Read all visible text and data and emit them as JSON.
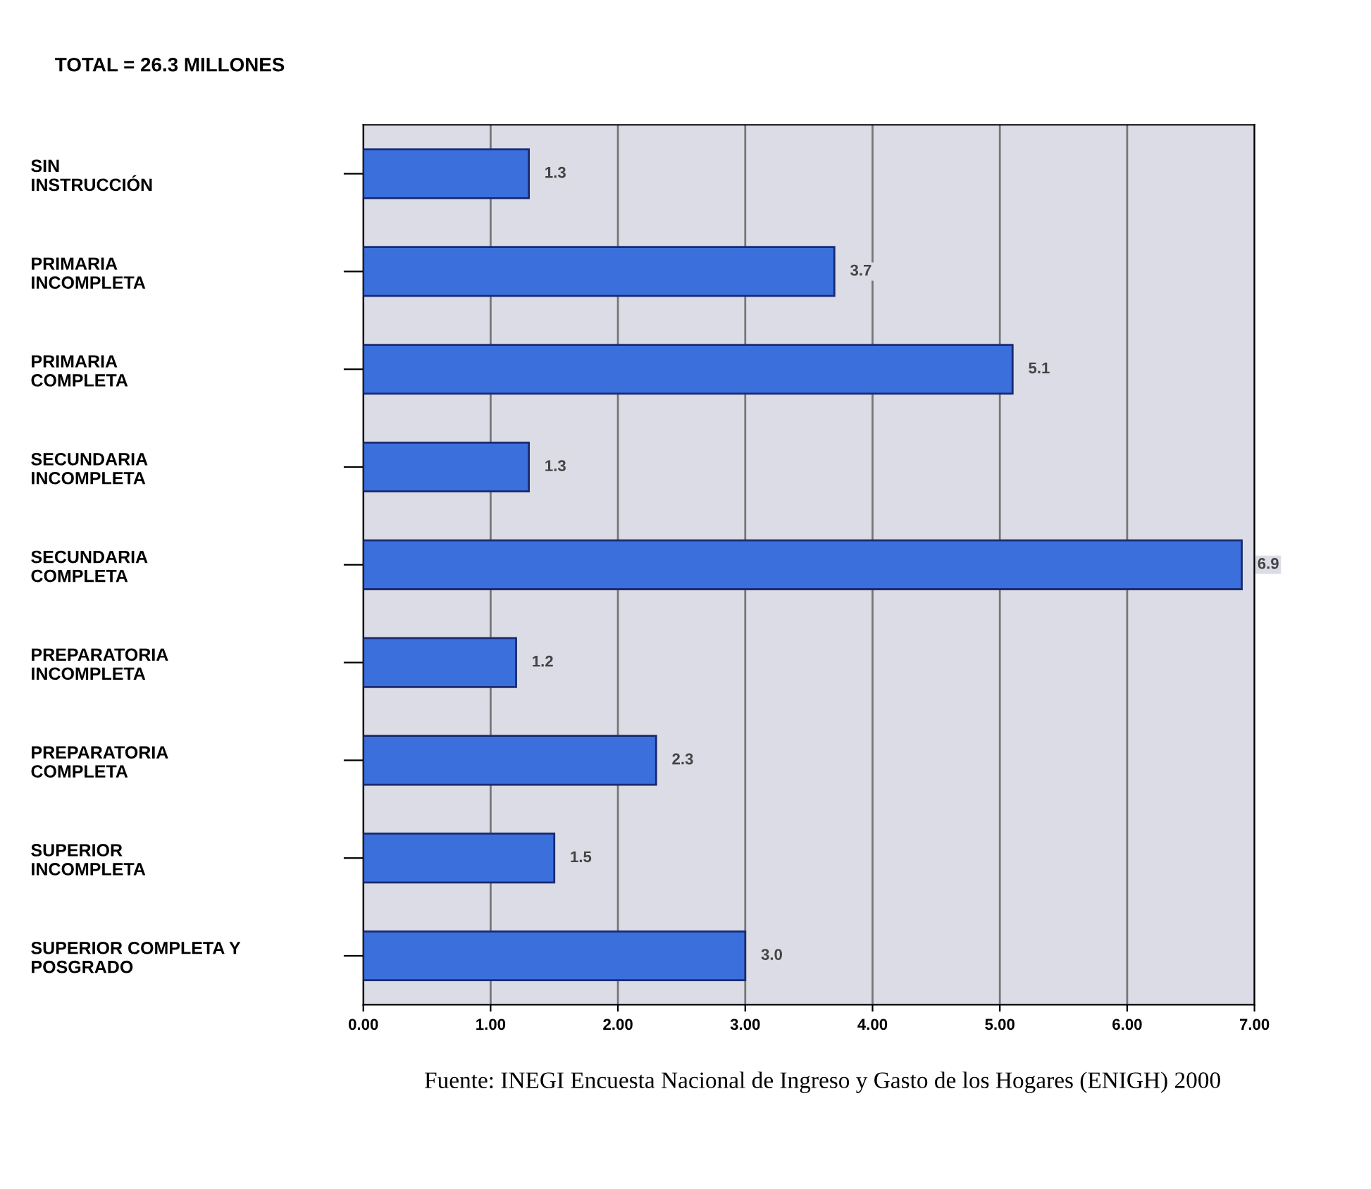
{
  "chart_data": {
    "type": "bar",
    "orientation": "horizontal",
    "title": "TOTAL = 26.3 MILLONES",
    "categories": [
      "SIN\nINSTRUCCIÓN",
      "PRIMARIA\nINCOMPLETA",
      "PRIMARIA\nCOMPLETA",
      "SECUNDARIA\nINCOMPLETA",
      "SECUNDARIA\nCOMPLETA",
      "PREPARATORIA\nINCOMPLETA",
      "PREPARATORIA\nCOMPLETA",
      "SUPERIOR\nINCOMPLETA",
      "SUPERIOR COMPLETA Y\nPOSGRADO"
    ],
    "values": [
      1.3,
      3.7,
      5.1,
      1.3,
      6.9,
      1.2,
      2.3,
      1.5,
      3.0
    ],
    "value_labels": [
      "1.3",
      "3.7",
      "5.1",
      "1.3",
      "6.9",
      "1.2",
      "2.3",
      "1.5",
      "3.0"
    ],
    "color": "#3a6fdc",
    "xlim": [
      0,
      7
    ],
    "xticks": [
      {
        "value": 0,
        "label": "0.00"
      },
      {
        "value": 1,
        "label": "1.00"
      },
      {
        "value": 2,
        "label": "2.00"
      },
      {
        "value": 3,
        "label": "3.00"
      },
      {
        "value": 4,
        "label": "4.00"
      },
      {
        "value": 5,
        "label": "5.00"
      },
      {
        "value": 6,
        "label": "6.00"
      },
      {
        "value": 7,
        "label": "7.00"
      }
    ],
    "grid": "x",
    "annotations": [
      "Fuente: INEGI Encuesta Nacional de Ingreso y Gasto de los Hogares (ENIGH) 2000"
    ]
  }
}
